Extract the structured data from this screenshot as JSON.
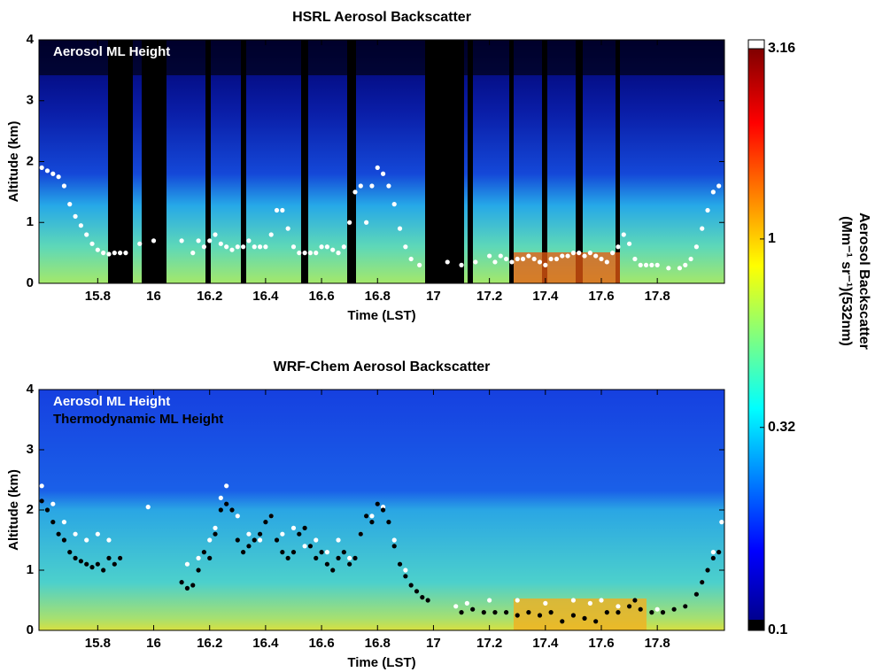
{
  "chart_data": [
    {
      "type": "scatter",
      "title": "HSRL Aerosol Backscatter",
      "xlabel": "Time (LST)",
      "ylabel": "Altitude (km)",
      "xlim": [
        15.59,
        18.04
      ],
      "xticks": [
        15.8,
        16,
        16.2,
        16.4,
        16.6,
        16.8,
        17,
        17.2,
        17.4,
        17.6,
        17.8
      ],
      "ylim": [
        0,
        4
      ],
      "yticks": [
        0,
        1,
        2,
        3,
        4
      ],
      "series": [
        {
          "name": "Aerosol ML Height",
          "color": "#ffffff",
          "x": [
            15.6,
            15.62,
            15.64,
            15.66,
            15.68,
            15.7,
            15.72,
            15.74,
            15.76,
            15.78,
            15.8,
            15.82,
            15.84,
            15.86,
            15.88,
            15.9,
            15.95,
            16.0,
            16.1,
            16.14,
            16.16,
            16.18,
            16.2,
            16.22,
            16.24,
            16.26,
            16.28,
            16.3,
            16.32,
            16.34,
            16.36,
            16.38,
            16.4,
            16.42,
            16.44,
            16.46,
            16.48,
            16.5,
            16.52,
            16.54,
            16.56,
            16.58,
            16.6,
            16.62,
            16.64,
            16.66,
            16.68,
            16.7,
            16.72,
            16.74,
            16.76,
            16.78,
            16.8,
            16.82,
            16.84,
            16.86,
            16.88,
            16.9,
            16.92,
            16.95,
            17.05,
            17.1,
            17.15,
            17.2,
            17.22,
            17.24,
            17.26,
            17.28,
            17.3,
            17.32,
            17.34,
            17.36,
            17.38,
            17.4,
            17.42,
            17.44,
            17.46,
            17.48,
            17.5,
            17.52,
            17.54,
            17.56,
            17.58,
            17.6,
            17.62,
            17.64,
            17.66,
            17.68,
            17.7,
            17.72,
            17.74,
            17.76,
            17.78,
            17.8,
            17.84,
            17.88,
            17.9,
            17.92,
            17.94,
            17.96,
            17.98,
            18.0,
            18.02
          ],
          "values": [
            1.9,
            1.85,
            1.8,
            1.75,
            1.6,
            1.3,
            1.1,
            0.95,
            0.8,
            0.65,
            0.55,
            0.5,
            0.48,
            0.5,
            0.5,
            0.5,
            0.65,
            0.7,
            0.7,
            0.5,
            0.7,
            0.6,
            0.7,
            0.8,
            0.65,
            0.6,
            0.55,
            0.6,
            0.6,
            0.7,
            0.6,
            0.6,
            0.6,
            0.8,
            1.2,
            1.2,
            0.9,
            0.6,
            0.5,
            0.5,
            0.5,
            0.5,
            0.6,
            0.6,
            0.55,
            0.5,
            0.6,
            1.0,
            1.5,
            1.6,
            1.0,
            1.6,
            1.9,
            1.8,
            1.6,
            1.3,
            0.9,
            0.6,
            0.4,
            0.3,
            0.35,
            0.3,
            0.35,
            0.45,
            0.35,
            0.45,
            0.4,
            0.35,
            0.4,
            0.4,
            0.45,
            0.4,
            0.35,
            0.3,
            0.4,
            0.4,
            0.45,
            0.45,
            0.5,
            0.5,
            0.45,
            0.5,
            0.45,
            0.4,
            0.35,
            0.5,
            0.6,
            0.8,
            0.65,
            0.4,
            0.3,
            0.3,
            0.3,
            0.3,
            0.25,
            0.25,
            0.3,
            0.4,
            0.6,
            0.9,
            1.2,
            1.5,
            1.6
          ]
        }
      ]
    },
    {
      "type": "scatter",
      "title": "WRF-Chem Aerosol Backscatter",
      "xlabel": "Time (LST)",
      "ylabel": "Altitude (km)",
      "xlim": [
        15.59,
        18.04
      ],
      "xticks": [
        15.8,
        16,
        16.2,
        16.4,
        16.6,
        16.8,
        17,
        17.2,
        17.4,
        17.6,
        17.8
      ],
      "ylim": [
        0,
        4
      ],
      "yticks": [
        0,
        1,
        2,
        3,
        4
      ],
      "series": [
        {
          "name": "Aerosol ML Height",
          "color": "#ffffff",
          "x": [
            15.6,
            15.64,
            15.68,
            15.72,
            15.76,
            15.8,
            15.84,
            15.88,
            15.98,
            16.12,
            16.16,
            16.2,
            16.22,
            16.24,
            16.26,
            16.3,
            16.34,
            16.38,
            16.42,
            16.46,
            16.5,
            16.54,
            16.58,
            16.62,
            16.66,
            16.7,
            16.74,
            16.78,
            16.82,
            16.86,
            16.9,
            17.08,
            17.12,
            17.2,
            17.3,
            17.4,
            17.5,
            17.56,
            17.6,
            17.66,
            17.72,
            17.8,
            17.9,
            17.96,
            18.0,
            18.03
          ],
          "values": [
            2.4,
            2.1,
            1.8,
            1.6,
            1.5,
            1.6,
            1.5,
            1.2,
            2.05,
            1.1,
            1.2,
            1.5,
            1.7,
            2.2,
            2.4,
            1.9,
            1.6,
            1.5,
            1.9,
            1.6,
            1.7,
            1.4,
            1.5,
            1.3,
            1.5,
            1.2,
            1.6,
            1.9,
            2.05,
            1.5,
            1.0,
            0.4,
            0.45,
            0.5,
            0.5,
            0.45,
            0.5,
            0.45,
            0.5,
            0.4,
            0.5,
            0.35,
            0.4,
            0.8,
            1.3,
            1.8
          ]
        },
        {
          "name": "Thermodynamic ML Height",
          "color": "#000000",
          "x": [
            15.6,
            15.62,
            15.64,
            15.66,
            15.68,
            15.7,
            15.72,
            15.74,
            15.76,
            15.78,
            15.8,
            15.82,
            15.84,
            15.86,
            15.88,
            16.1,
            16.12,
            16.14,
            16.16,
            16.18,
            16.2,
            16.22,
            16.24,
            16.26,
            16.28,
            16.3,
            16.32,
            16.34,
            16.36,
            16.38,
            16.4,
            16.42,
            16.44,
            16.46,
            16.48,
            16.5,
            16.52,
            16.54,
            16.56,
            16.58,
            16.6,
            16.62,
            16.64,
            16.66,
            16.68,
            16.7,
            16.72,
            16.74,
            16.76,
            16.78,
            16.8,
            16.82,
            16.84,
            16.86,
            16.88,
            16.9,
            16.92,
            16.94,
            16.96,
            16.98,
            17.1,
            17.14,
            17.18,
            17.22,
            17.26,
            17.3,
            17.34,
            17.38,
            17.42,
            17.46,
            17.5,
            17.54,
            17.58,
            17.62,
            17.66,
            17.7,
            17.72,
            17.74,
            17.78,
            17.82,
            17.86,
            17.9,
            17.94,
            17.96,
            17.98,
            18.0,
            18.02
          ],
          "values": [
            2.15,
            2.0,
            1.8,
            1.6,
            1.5,
            1.3,
            1.2,
            1.15,
            1.1,
            1.05,
            1.1,
            1.0,
            1.2,
            1.1,
            1.2,
            0.8,
            0.7,
            0.75,
            1.0,
            1.3,
            1.2,
            1.6,
            2.0,
            2.1,
            2.0,
            1.5,
            1.3,
            1.4,
            1.5,
            1.6,
            1.8,
            1.9,
            1.5,
            1.3,
            1.2,
            1.3,
            1.6,
            1.7,
            1.4,
            1.2,
            1.3,
            1.1,
            1.0,
            1.2,
            1.3,
            1.1,
            1.2,
            1.6,
            1.9,
            1.8,
            2.1,
            2.0,
            1.8,
            1.4,
            1.1,
            0.9,
            0.75,
            0.65,
            0.55,
            0.5,
            0.3,
            0.35,
            0.3,
            0.3,
            0.3,
            0.25,
            0.3,
            0.25,
            0.3,
            0.15,
            0.25,
            0.2,
            0.15,
            0.3,
            0.3,
            0.4,
            0.5,
            0.35,
            0.3,
            0.3,
            0.35,
            0.4,
            0.6,
            0.8,
            1.0,
            1.2,
            1.3
          ]
        }
      ]
    },
    {
      "type": "colorbar",
      "label": "Aerosol Backscatter",
      "unit_label": "(Mm⁻¹ sr⁻¹)(532nm)",
      "ylim": [
        0.1,
        3.16
      ],
      "yticks": [
        0.1,
        0.32,
        1,
        3.16
      ],
      "log": true
    }
  ]
}
